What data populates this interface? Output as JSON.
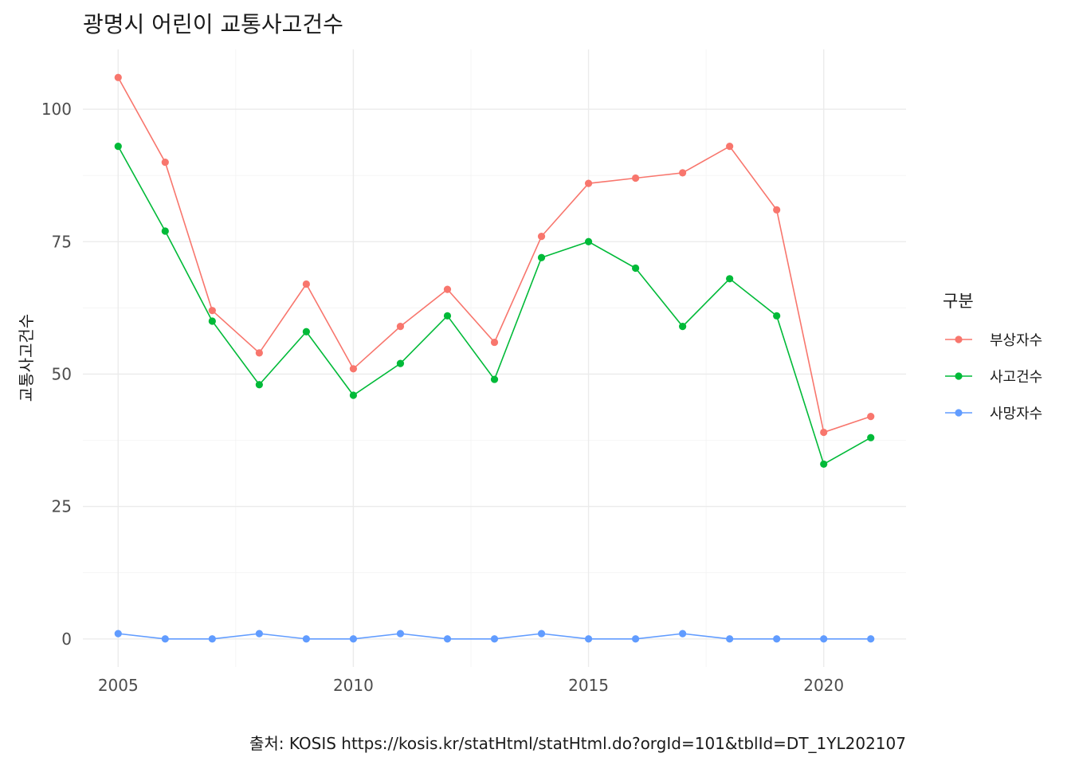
{
  "chart_data": {
    "type": "line",
    "title": "광명시 어린이 교통사고건수",
    "xlabel": "",
    "ylabel": "교통사고건수",
    "caption": "출처: KOSIS https://kosis.kr/statHtml/statHtml.do?orgId=101&tblId=DT_1YL202107",
    "x": [
      2005,
      2006,
      2007,
      2008,
      2009,
      2010,
      2011,
      2012,
      2013,
      2014,
      2015,
      2016,
      2017,
      2018,
      2019,
      2020,
      2021
    ],
    "xlim": [
      2004.25,
      2021.75
    ],
    "ylim": [
      -5.3,
      111.3
    ],
    "x_ticks": [
      2005,
      2010,
      2015,
      2020
    ],
    "x_tick_labels": [
      "2005",
      "2010",
      "2015",
      "2020"
    ],
    "y_ticks": [
      0,
      25,
      50,
      75,
      100
    ],
    "y_tick_labels": [
      "0",
      "25",
      "50",
      "75",
      "100"
    ],
    "grid": true,
    "legend": {
      "title": "구분",
      "position": "right"
    },
    "series": [
      {
        "name": "부상자수",
        "color": "#F8766D",
        "values": [
          106,
          90,
          62,
          54,
          67,
          51,
          59,
          66,
          56,
          76,
          86,
          87,
          88,
          93,
          81,
          39,
          42
        ]
      },
      {
        "name": "사고건수",
        "color": "#00BA38",
        "values": [
          93,
          77,
          60,
          48,
          58,
          46,
          52,
          61,
          49,
          72,
          75,
          70,
          59,
          68,
          61,
          33,
          38
        ]
      },
      {
        "name": "사망자수",
        "color": "#619CFF",
        "values": [
          1,
          0,
          0,
          1,
          0,
          0,
          1,
          0,
          0,
          1,
          0,
          0,
          1,
          0,
          0,
          0,
          0
        ]
      }
    ]
  }
}
